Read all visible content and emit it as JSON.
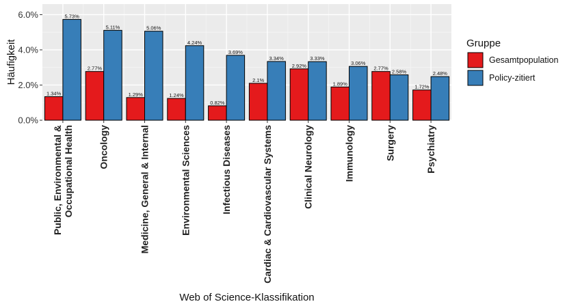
{
  "chart_data": {
    "type": "bar",
    "title": "",
    "xlabel": "Web of Science-Klassifikation",
    "ylabel": "Häufigkeit",
    "ylim": [
      0,
      6.6
    ],
    "yticks": [
      0,
      2,
      4,
      6
    ],
    "ytick_labels": [
      "0.0%",
      "2.0%",
      "4.0%",
      "6.0%"
    ],
    "grid": true,
    "legend": {
      "title": "Gruppe",
      "placement": "right"
    },
    "categories": [
      "Public, Environmental & Occupational Health",
      "Oncology",
      "Medicine, General & Internal",
      "Environmental Sciences",
      "Infectious Diseases",
      "Cardiac & Cardiovascular Systems",
      "Clinical Neurology",
      "Immunology",
      "Surgery",
      "Psychiatry"
    ],
    "category_lines": [
      [
        "Public, Environmental &",
        "Occupational Health"
      ],
      [
        "Oncology"
      ],
      [
        "Medicine, General & Internal"
      ],
      [
        "Environmental Sciences"
      ],
      [
        "Infectious Diseases"
      ],
      [
        "Cardiac & Cardiovascular Systems"
      ],
      [
        "Clinical Neurology"
      ],
      [
        "Immunology"
      ],
      [
        "Surgery"
      ],
      [
        "Psychiatry"
      ]
    ],
    "series": [
      {
        "name": "Gesamtpopulation",
        "color": "#E41A1C",
        "values": [
          1.34,
          2.77,
          1.29,
          1.24,
          0.82,
          2.1,
          2.92,
          1.89,
          2.77,
          1.72
        ],
        "labels": [
          "1.34%",
          "2.77%",
          "1.29%",
          "1.24%",
          "0.82%",
          "2.1%",
          "2.92%",
          "1.89%",
          "2.77%",
          "1.72%"
        ]
      },
      {
        "name": "Policy-zitiert",
        "color": "#377EB8",
        "values": [
          5.73,
          5.11,
          5.06,
          4.24,
          3.69,
          3.34,
          3.33,
          3.06,
          2.58,
          2.48
        ],
        "labels": [
          "5.73%",
          "5.11%",
          "5.06%",
          "4.24%",
          "3.69%",
          "3.34%",
          "3.33%",
          "3.06%",
          "2.58%",
          "2.48%"
        ]
      }
    ]
  }
}
